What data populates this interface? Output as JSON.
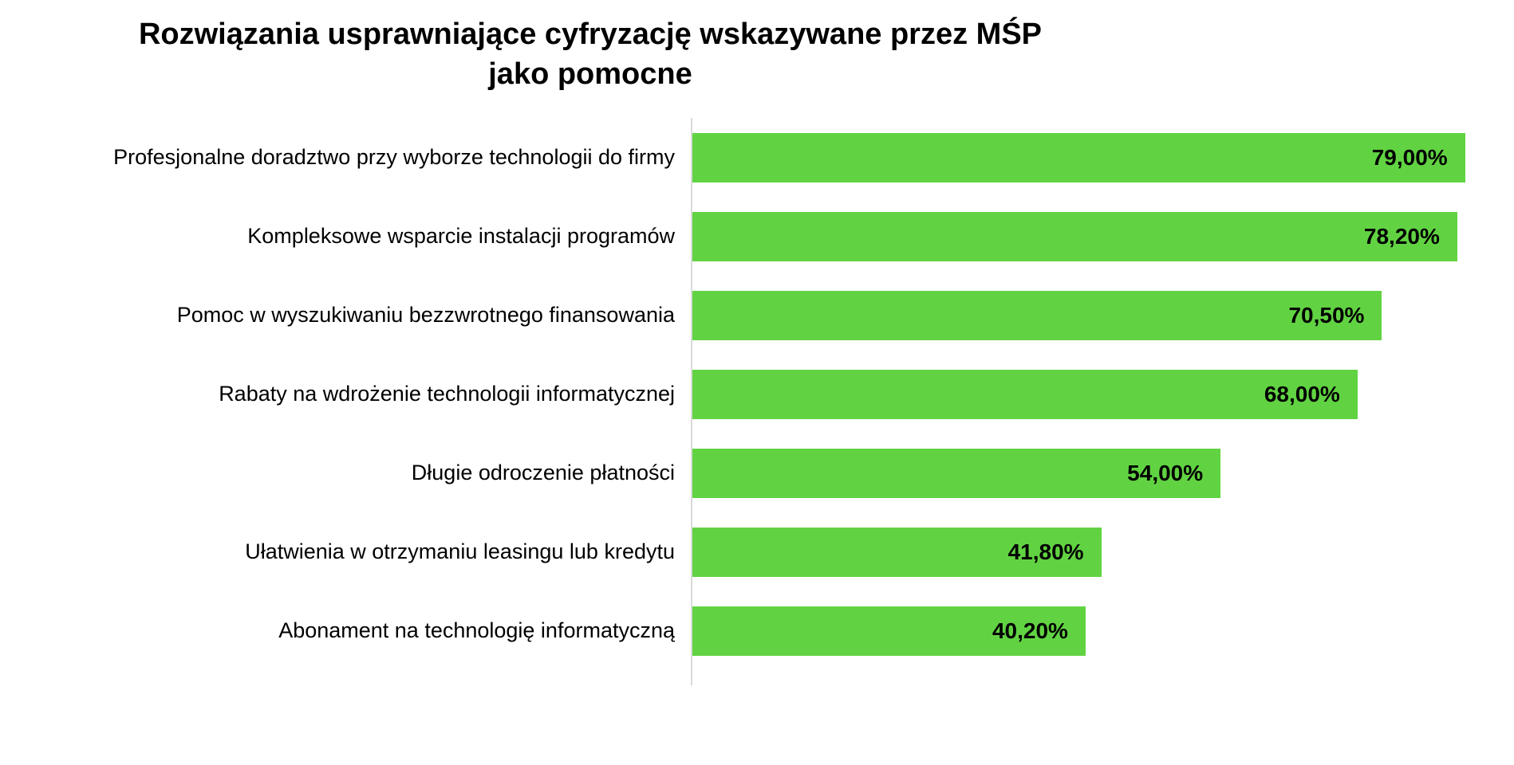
{
  "chart_data": {
    "type": "bar",
    "orientation": "horizontal",
    "title": "Rozwiązania usprawniające cyfryzację wskazywane przez MŚP jako pomocne",
    "categories": [
      "Profesjonalne doradztwo przy wyborze technologii do firmy",
      "Kompleksowe wsparcie instalacji programów",
      "Pomoc w wyszukiwaniu bezzwrotnego finansowania",
      "Rabaty na wdrożenie technologii informatycznej",
      "Długie odroczenie płatności",
      "Ułatwienia w otrzymaniu leasingu lub kredytu",
      "Abonament na technologię informatyczną"
    ],
    "values": [
      79.0,
      78.2,
      70.5,
      68.0,
      54.0,
      41.8,
      40.2
    ],
    "value_labels": [
      "79,00%",
      "78,20%",
      "70,50%",
      "68,00%",
      "54,00%",
      "41,80%",
      "40,20%"
    ],
    "xlabel": "",
    "ylabel": "",
    "xlim": [
      0,
      84
    ],
    "grid": false,
    "legend": "none",
    "bar_color": "#61d342",
    "axis_line_color": "#d9d9d9",
    "value_label_position": "inside-end"
  }
}
